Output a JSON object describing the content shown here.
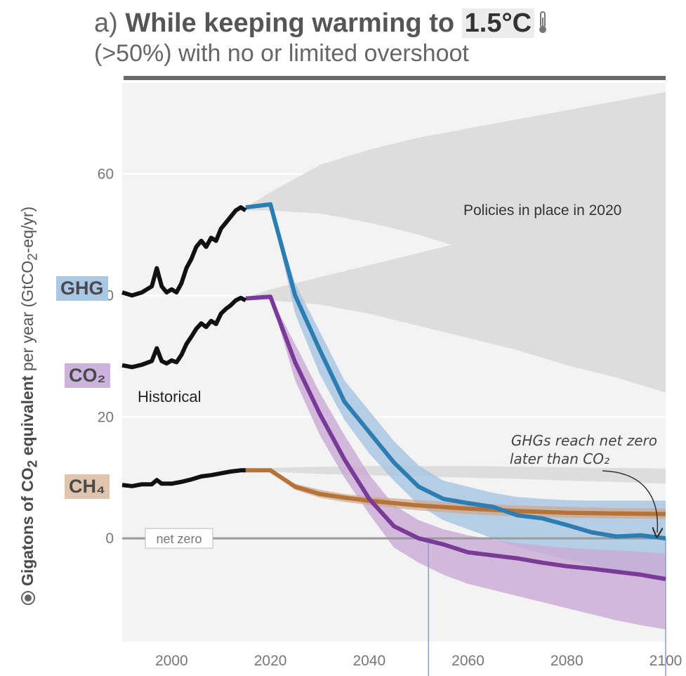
{
  "title": {
    "prefix": "a)",
    "main": "While keeping warming to",
    "highlight": "1.5°C",
    "subtitle": "(>50%) with no or limited overshoot"
  },
  "colors": {
    "ghg": "#2b7db2",
    "co2": "#7a3a97",
    "ch4": "#b5733a",
    "historical": "#111111",
    "policy_band": "#dddddd",
    "ghg_band": "#a9c6e2",
    "co2_band": "#c9aad6",
    "ghg_tag_bg": "#a8c8e6",
    "co2_tag_bg": "#cdb2dd",
    "ch4_tag_bg": "#e0c4ad"
  },
  "chart_data": {
    "type": "line",
    "ylabel_bold": "Gigatons of CO",
    "ylabel_sub": "2",
    "ylabel_bold2": " equivalent",
    "ylabel_rest": " per year (GtCO",
    "ylabel_sub2": "2",
    "ylabel_end": "-eq/yr)",
    "xlim": [
      1990,
      2100
    ],
    "ylim": [
      -17,
      75
    ],
    "x_ticks": [
      2000,
      2020,
      2040,
      2060,
      2080,
      2100
    ],
    "x_tick_labels": [
      "2000",
      "2020",
      "2040",
      "2060",
      "2080",
      "2100"
    ],
    "y_ticks": [
      0,
      20,
      40,
      60
    ],
    "y_tick_labels": [
      "0",
      "20",
      "40",
      "60"
    ],
    "net_zero_label": "net zero",
    "annotations": {
      "historical": "Historical",
      "policies": "Policies in place in 2020",
      "ghg_note_line1": "GHGs reach net zero",
      "ghg_note_line2": "later than CO₂"
    },
    "series_tags": {
      "ghg": "GHG",
      "co2": "CO₂",
      "ch4": "CH₄"
    },
    "net_zero_years": [
      2052,
      2100
    ],
    "historical": {
      "ghg": {
        "x": [
          1990,
          1992,
          1994,
          1996,
          1997,
          1998,
          1999,
          2000,
          2001,
          2002,
          2003,
          2004,
          2005,
          2006,
          2007,
          2008,
          2009,
          2010,
          2011,
          2012,
          2013,
          2014,
          2015
        ],
        "y": [
          40.5,
          40,
          40.5,
          41.5,
          44.5,
          41.5,
          40.5,
          41,
          40.5,
          42,
          44.5,
          46,
          48,
          49,
          48,
          49.5,
          49,
          51,
          52,
          53,
          54,
          54.5,
          54
        ]
      },
      "co2": {
        "x": [
          1990,
          1992,
          1994,
          1996,
          1997,
          1998,
          1999,
          2000,
          2001,
          2002,
          2003,
          2004,
          2005,
          2006,
          2007,
          2008,
          2009,
          2010,
          2011,
          2012,
          2013,
          2014,
          2015
        ],
        "y": [
          28.5,
          28.2,
          28.6,
          29.2,
          31.3,
          29.2,
          28.8,
          29.3,
          29,
          30.2,
          32,
          33.2,
          34.5,
          35.4,
          34.8,
          35.8,
          35.3,
          37,
          37.8,
          38.4,
          39.2,
          39.6,
          39.2
        ]
      },
      "ch4": {
        "x": [
          1990,
          1992,
          1994,
          1996,
          1997,
          1998,
          2000,
          2002,
          2004,
          2006,
          2008,
          2010,
          2012,
          2014,
          2015
        ],
        "y": [
          8.8,
          8.6,
          8.9,
          8.9,
          9.6,
          9,
          9,
          9.3,
          9.7,
          10.2,
          10.4,
          10.7,
          11,
          11.2,
          11.2
        ]
      }
    },
    "pathways": {
      "ghg": {
        "x": [
          2015,
          2020,
          2025,
          2030,
          2035,
          2040,
          2045,
          2050,
          2055,
          2060,
          2065,
          2070,
          2075,
          2080,
          2085,
          2090,
          2095,
          2100
        ],
        "y": [
          54.5,
          55,
          40,
          31,
          22.5,
          17.5,
          12.5,
          8.5,
          6.5,
          5.8,
          5.2,
          3.8,
          3.3,
          2.2,
          1,
          0.3,
          0.5,
          0
        ],
        "low": [
          54.5,
          55,
          37,
          27,
          19.5,
          14,
          9.5,
          5.5,
          3,
          1.5,
          0,
          -1.5,
          -2.5,
          -3.5,
          -4.5,
          -5.2,
          -5.8,
          -6.5
        ],
        "high": [
          54.5,
          55,
          42,
          34,
          26,
          21,
          16,
          12,
          9.5,
          8.5,
          7.5,
          6.8,
          6.5,
          6.3,
          6.2,
          6.2,
          6.2,
          6.2
        ]
      },
      "co2": {
        "x": [
          2015,
          2020,
          2025,
          2030,
          2035,
          2040,
          2045,
          2050,
          2055,
          2060,
          2065,
          2070,
          2075,
          2080,
          2085,
          2090,
          2095,
          2100
        ],
        "y": [
          39.5,
          39.8,
          29,
          20.5,
          13,
          6.5,
          2,
          0,
          -1,
          -2.3,
          -2.8,
          -3.3,
          -4,
          -4.6,
          -5,
          -5.5,
          -6,
          -6.7
        ],
        "low": [
          39.5,
          39.8,
          26,
          17,
          10,
          4,
          -1.5,
          -4,
          -6,
          -7.5,
          -8.5,
          -9.5,
          -10.5,
          -11.5,
          -12.5,
          -13.5,
          -14.3,
          -15
        ],
        "high": [
          39.5,
          39.8,
          32,
          24,
          17,
          10.5,
          5.5,
          3,
          1.5,
          0.5,
          -0.2,
          -0.8,
          -1.2,
          -1.6,
          -1.8,
          -2,
          -2.2,
          -2.5
        ]
      },
      "ch4": {
        "x": [
          2015,
          2020,
          2025,
          2030,
          2035,
          2040,
          2045,
          2050,
          2060,
          2070,
          2080,
          2090,
          2100
        ],
        "y": [
          11.2,
          11.2,
          8.5,
          7.3,
          6.7,
          6.2,
          5.8,
          5.4,
          4.9,
          4.5,
          4.2,
          4.1,
          4
        ],
        "low": [
          11.2,
          11.2,
          8,
          6.7,
          6,
          5.5,
          5,
          4.6,
          4,
          3.6,
          3.4,
          3.3,
          3.2
        ],
        "high": [
          11.2,
          11.2,
          9,
          8,
          7.3,
          6.9,
          6.6,
          6.3,
          5.8,
          5.4,
          5.2,
          5,
          4.9
        ]
      }
    },
    "policy_bands": {
      "ghg": {
        "x": [
          2015,
          2020,
          2030,
          2040,
          2050,
          2060,
          2070,
          2080,
          2090,
          2100
        ],
        "low": [
          54,
          54,
          53.5,
          52,
          50,
          47.5,
          45,
          42.5,
          40,
          38
        ],
        "high": [
          54.5,
          57,
          61.5,
          64,
          66,
          67.5,
          69,
          70.5,
          72,
          73.5
        ]
      },
      "co2": {
        "x": [
          2015,
          2020,
          2030,
          2040,
          2050,
          2060,
          2070,
          2080,
          2090,
          2100
        ],
        "low": [
          39.2,
          39.2,
          38.5,
          37,
          35,
          33,
          31,
          28.5,
          26.5,
          24
        ],
        "high": [
          39.6,
          41,
          43,
          45,
          47,
          49,
          50.5,
          52,
          53.5,
          55
        ]
      },
      "ch4": {
        "x": [
          2015,
          2020,
          2030,
          2040,
          2050,
          2060,
          2070,
          2080,
          2090,
          2100
        ],
        "low": [
          11,
          11,
          10.6,
          10.4,
          10.2,
          10,
          9.8,
          9.5,
          9.3,
          9
        ],
        "high": [
          11.5,
          11.6,
          11.8,
          11.9,
          11.9,
          11.9,
          11.8,
          11.7,
          11.6,
          11.5
        ]
      }
    }
  }
}
